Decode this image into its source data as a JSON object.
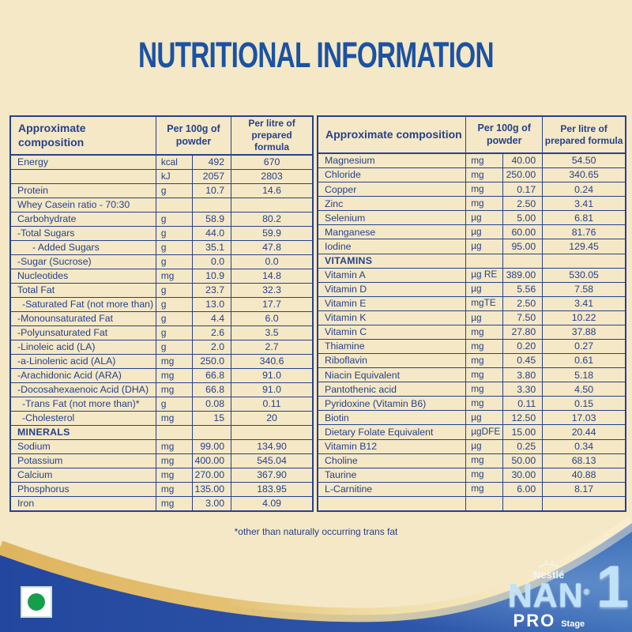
{
  "title": "NUTRITIONAL INFORMATION",
  "footnote": "*other than naturally occurring trans fat",
  "columns": {
    "composition": "Approximate composition",
    "per_100g": "Per 100g of powder",
    "per_litre": "Per litre of prepared formula"
  },
  "left_table": {
    "rows": [
      {
        "label": "Energy",
        "unit": "kcal",
        "per_100g": "492",
        "per_litre": "670"
      },
      {
        "label": "",
        "unit": "kJ",
        "per_100g": "2057",
        "per_litre": "2803"
      },
      {
        "label": "Protein",
        "unit": "g",
        "per_100g": "10.7",
        "per_litre": "14.6"
      },
      {
        "label": "Whey Casein ratio - 70:30",
        "unit": "",
        "per_100g": "",
        "per_litre": ""
      },
      {
        "label": "Carbohydrate",
        "unit": "g",
        "per_100g": "58.9",
        "per_litre": "80.2"
      },
      {
        "label": "-Total Sugars",
        "unit": "g",
        "per_100g": "44.0",
        "per_litre": "59.9"
      },
      {
        "label": "- Added Sugars",
        "indent": 2,
        "unit": "g",
        "per_100g": "35.1",
        "per_litre": "47.8"
      },
      {
        "label": "-Sugar (Sucrose)",
        "unit": "g",
        "per_100g": "0.0",
        "per_litre": "0.0"
      },
      {
        "label": "Nucleotides",
        "unit": "mg",
        "per_100g": "10.9",
        "per_litre": "14.8"
      },
      {
        "label": "Total Fat",
        "unit": "g",
        "per_100g": "23.7",
        "per_litre": "32.3"
      },
      {
        "label": "-Saturated Fat (not more than)",
        "indent": 1,
        "unit": "g",
        "per_100g": "13.0",
        "per_litre": "17.7"
      },
      {
        "label": "-Monounsaturated Fat",
        "unit": "g",
        "per_100g": "4.4",
        "per_litre": "6.0"
      },
      {
        "label": "-Polyunsaturated Fat",
        "unit": "g",
        "per_100g": "2.6",
        "per_litre": "3.5"
      },
      {
        "label": "-Linoleic acid (LA)",
        "unit": "g",
        "per_100g": "2.0",
        "per_litre": "2.7"
      },
      {
        "label": "-a-Linolenic acid (ALA)",
        "unit": "mg",
        "per_100g": "250.0",
        "per_litre": "340.6"
      },
      {
        "label": "-Arachidonic Acid (ARA)",
        "unit": "mg",
        "per_100g": "66.8",
        "per_litre": "91.0"
      },
      {
        "label": "-Docosahexaenoic Acid (DHA)",
        "unit": "mg",
        "per_100g": "66.8",
        "per_litre": "91.0"
      },
      {
        "label": "-Trans Fat (not more than)*",
        "indent": 1,
        "unit": "g",
        "per_100g": "0.08",
        "per_litre": "0.11"
      },
      {
        "label": "-Cholesterol",
        "indent": 1,
        "unit": "mg",
        "per_100g": "15",
        "per_litre": "20"
      },
      {
        "label": "MINERALS",
        "section": true,
        "unit": "",
        "per_100g": "",
        "per_litre": ""
      },
      {
        "label": "Sodium",
        "unit": "mg",
        "per_100g": "99.00",
        "per_litre": "134.90"
      },
      {
        "label": "Potassium",
        "unit": "mg",
        "per_100g": "400.00",
        "per_litre": "545.04"
      },
      {
        "label": "Calcium",
        "unit": "mg",
        "per_100g": "270.00",
        "per_litre": "367.90"
      },
      {
        "label": "Phosphorus",
        "unit": "mg",
        "per_100g": "135.00",
        "per_litre": "183.95"
      },
      {
        "label": "Iron",
        "unit": "mg",
        "per_100g": "3.00",
        "per_litre": "4.09"
      }
    ]
  },
  "right_table": {
    "rows": [
      {
        "label": "Magnesium",
        "unit": "mg",
        "per_100g": "40.00",
        "per_litre": "54.50"
      },
      {
        "label": "Chloride",
        "unit": "mg",
        "per_100g": "250.00",
        "per_litre": "340.65"
      },
      {
        "label": "Copper",
        "unit": "mg",
        "per_100g": "0.17",
        "per_litre": "0.24"
      },
      {
        "label": "Zinc",
        "unit": "mg",
        "per_100g": "2.50",
        "per_litre": "3.41"
      },
      {
        "label": "Selenium",
        "unit": "µg",
        "per_100g": "5.00",
        "per_litre": "6.81"
      },
      {
        "label": "Manganese",
        "unit": "µg",
        "per_100g": "60.00",
        "per_litre": "81.76"
      },
      {
        "label": "Iodine",
        "unit": "µg",
        "per_100g": "95.00",
        "per_litre": "129.45"
      },
      {
        "label": "VITAMINS",
        "section": true,
        "unit": "",
        "per_100g": "",
        "per_litre": ""
      },
      {
        "label": "Vitamin A",
        "unit": "µg RE",
        "per_100g": "389.00",
        "per_litre": "530.05"
      },
      {
        "label": "Vitamin D",
        "unit": "µg",
        "per_100g": "5.56",
        "per_litre": "7.58"
      },
      {
        "label": "Vitamin E",
        "unit": "mgTE",
        "per_100g": "2.50",
        "per_litre": "3.41"
      },
      {
        "label": "Vitamin K",
        "unit": "µg",
        "per_100g": "7.50",
        "per_litre": "10.22"
      },
      {
        "label": "Vitamin C",
        "unit": "mg",
        "per_100g": "27.80",
        "per_litre": "37.88"
      },
      {
        "label": "Thiamine",
        "unit": "mg",
        "per_100g": "0.20",
        "per_litre": "0.27"
      },
      {
        "label": "Riboflavin",
        "unit": "mg",
        "per_100g": "0.45",
        "per_litre": "0.61"
      },
      {
        "label": "Niacin Equivalent",
        "unit": "mg",
        "per_100g": "3.80",
        "per_litre": "5.18"
      },
      {
        "label": "Pantothenic acid",
        "unit": "mg",
        "per_100g": "3.30",
        "per_litre": "4.50"
      },
      {
        "label": "Pyridoxine (Vitamin B6)",
        "unit": "mg",
        "per_100g": "0.11",
        "per_litre": "0.15"
      },
      {
        "label": "Biotin",
        "unit": "µg",
        "per_100g": "12.50",
        "per_litre": "17.03"
      },
      {
        "label": "Dietary Folate Equivalent",
        "unit": "µgDFE",
        "per_100g": "15.00",
        "per_litre": "20.44"
      },
      {
        "label": "Vitamin B12",
        "unit": "µg",
        "per_100g": "0.25",
        "per_litre": "0.34"
      },
      {
        "label": "Choline",
        "unit": "mg",
        "per_100g": "50.00",
        "per_litre": "68.13"
      },
      {
        "label": "Taurine",
        "unit": "mg",
        "per_100g": "30.00",
        "per_litre": "40.88"
      },
      {
        "label": "L-Carnitine",
        "unit": "mg",
        "per_100g": "6.00",
        "per_litre": "8.17"
      },
      {
        "label": "",
        "unit": "",
        "per_100g": "",
        "per_litre": ""
      }
    ]
  },
  "brand": {
    "nestle": "Nestlé",
    "nan": "NAN",
    "reg": "®",
    "pro": "PRO",
    "stage": "Stage",
    "stage_number": "1"
  },
  "colors": {
    "page_bg": "#f4e8c6",
    "text_navy": "#27418c",
    "title_blue": "#1b52a3",
    "band_blue_a": "#23479e",
    "band_blue_b": "#4273bb",
    "gold": "#dfb45f",
    "nan_blue": "#bfe2f8",
    "green": "#14a04b"
  }
}
